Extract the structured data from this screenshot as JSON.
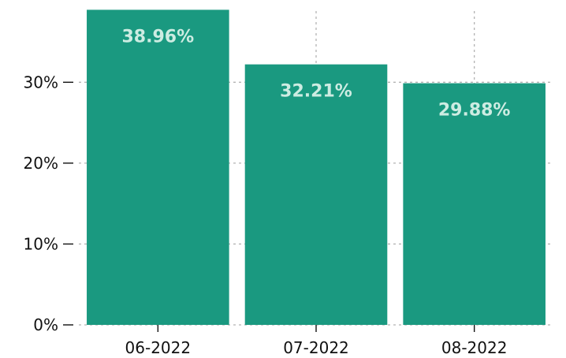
{
  "chart_data": {
    "type": "bar",
    "categories": [
      "06-2022",
      "07-2022",
      "08-2022"
    ],
    "values": [
      38.96,
      32.21,
      29.88
    ],
    "data_labels": [
      "38.96%",
      "32.21%",
      "29.88%"
    ],
    "ylim": [
      0,
      39
    ],
    "yticks": [
      0,
      10,
      20,
      30
    ],
    "ytick_labels": [
      "0%",
      "10%",
      "20%",
      "30%"
    ],
    "grid": true,
    "title": "",
    "xlabel": "",
    "ylabel": "",
    "bar_color": "#1a9980",
    "label_color": "#cdece2"
  }
}
